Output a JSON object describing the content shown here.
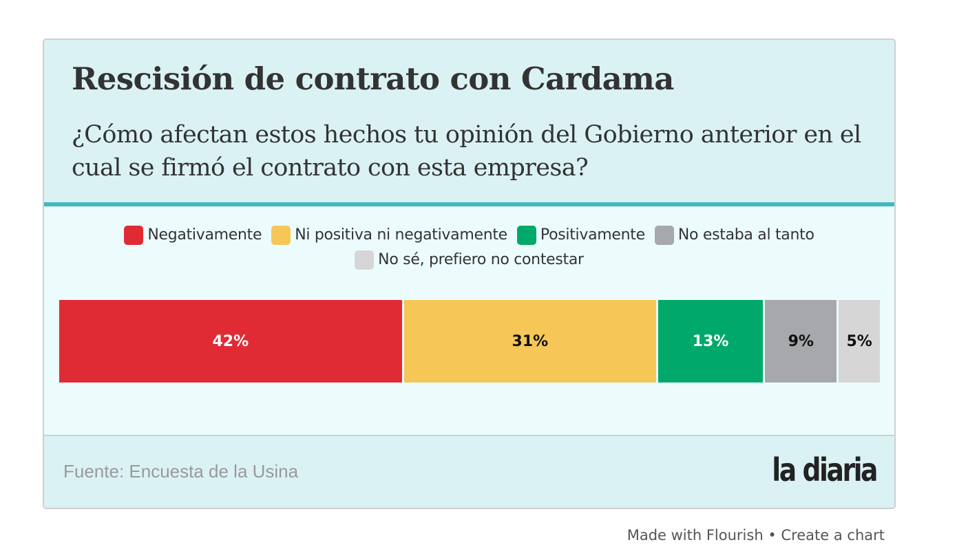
{
  "header": {
    "title": "Rescisión de contrato con Cardama",
    "subtitle": "¿Cómo afectan estos hechos tu opinión del Gobierno anterior en el cual se firmó el contrato con esta empresa?"
  },
  "colors": {
    "header_bg": "#dbf2f5",
    "body_bg": "#ecfcfd",
    "accent_rule": "#3fb8bf"
  },
  "chart_data": {
    "type": "bar",
    "orientation": "horizontal-stacked-100",
    "title": "Rescisión de contrato con Cardama",
    "subtitle": "¿Cómo afectan estos hechos tu opinión del Gobierno anterior en el cual se firmó el contrato con esta empresa?",
    "xlabel": "",
    "ylabel": "",
    "xlim": [
      0,
      100
    ],
    "grid": false,
    "legend_position": "top-center",
    "categories": [
      ""
    ],
    "series": [
      {
        "name": "Negativamente",
        "values": [
          42
        ],
        "label": "42%",
        "color": "#e02b35",
        "label_color": "#ffffff"
      },
      {
        "name": "Ni positiva ni negativamente",
        "values": [
          31
        ],
        "label": "31%",
        "color": "#f6c757",
        "label_color": "#111111"
      },
      {
        "name": "Positivamente",
        "values": [
          13
        ],
        "label": "13%",
        "color": "#00a96a",
        "label_color": "#ffffff"
      },
      {
        "name": "No estaba al tanto",
        "values": [
          9
        ],
        "label": "9%",
        "color": "#a6a8ab",
        "label_color": "#111111"
      },
      {
        "name": "No sé, prefiero no contestar",
        "values": [
          5
        ],
        "label": "5%",
        "color": "#d6d6d6",
        "label_color": "#111111"
      }
    ]
  },
  "footer": {
    "source": "Fuente: Encuesta de la Usina",
    "logo": "la diaria"
  },
  "credit": {
    "made_with": "Made with Flourish",
    "separator": "•",
    "create": "Create a chart"
  }
}
